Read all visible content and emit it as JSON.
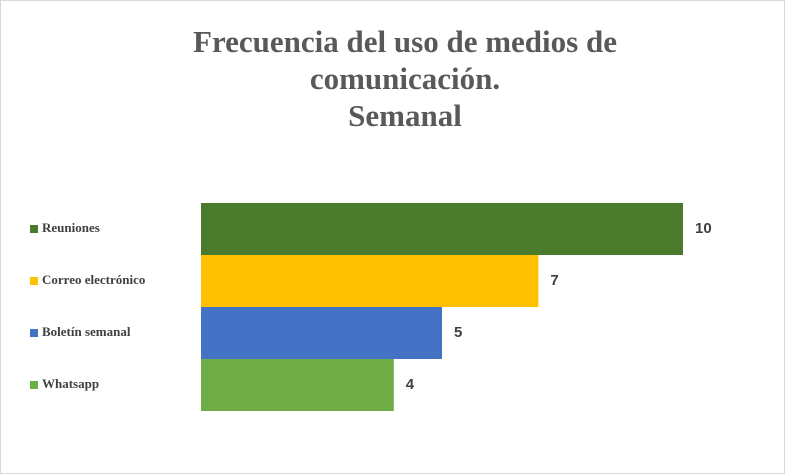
{
  "chart_data": {
    "type": "bar",
    "orientation": "horizontal",
    "title": [
      "Frecuencia del uso de medios de",
      "comunicación.",
      "Semanal"
    ],
    "categories": [
      "Reuniones",
      "Correo electrónico",
      "Boletín semanal",
      "Whatsapp"
    ],
    "values": [
      10,
      7,
      5,
      4
    ],
    "colors": [
      "#4a7a2b",
      "#ffc000",
      "#4472c4",
      "#70ad47"
    ],
    "xlim": [
      0,
      10
    ]
  }
}
